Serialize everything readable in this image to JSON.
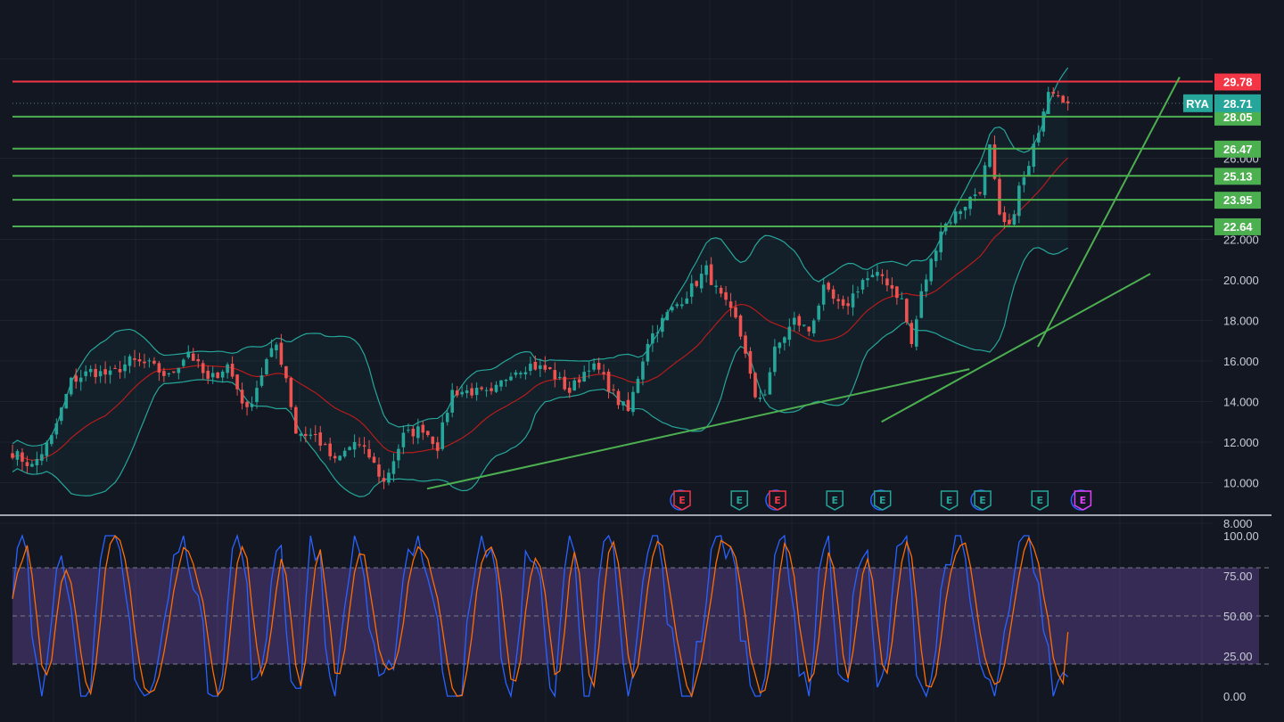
{
  "chart_data": [
    {
      "type": "candlestick",
      "symbol": "RYA",
      "price_axis": {
        "min": 7.0,
        "max": 32.0,
        "ticks": [
          {
            "value": 8,
            "label": "8.000"
          },
          {
            "value": 10,
            "label": "10.000"
          },
          {
            "value": 12,
            "label": "12.000"
          },
          {
            "value": 14,
            "label": "14.000"
          },
          {
            "value": 16,
            "label": "16.000"
          },
          {
            "value": 18,
            "label": "18.000"
          },
          {
            "value": 20,
            "label": "20.000"
          },
          {
            "value": 22,
            "label": "22.000"
          },
          {
            "value": 26,
            "label": "26.000"
          }
        ]
      },
      "current_price": {
        "symbol": "RYA",
        "value": 28.71,
        "label": "28.71",
        "color": "#26a69a"
      },
      "horizontal_levels": [
        {
          "value": 29.78,
          "label": "29.78",
          "color": "#f23645"
        },
        {
          "value": 28.05,
          "label": "28.05",
          "color": "#4caf50"
        },
        {
          "value": 26.47,
          "label": "26.47",
          "color": "#4caf50"
        },
        {
          "value": 25.13,
          "label": "25.13",
          "color": "#4caf50"
        },
        {
          "value": 23.95,
          "label": "23.95",
          "color": "#4caf50"
        },
        {
          "value": 22.64,
          "label": "22.64",
          "color": "#4caf50"
        }
      ],
      "trendlines": [
        {
          "from": [
            0,
            9.7
          ],
          "to": [
            111,
            15.6
          ],
          "color": "#4caf50"
        },
        {
          "from": [
            93,
            13.0
          ],
          "to": [
            148,
            20.3
          ],
          "color": "#4caf50"
        },
        {
          "from": [
            125,
            16.7
          ],
          "to": [
            154,
            30.0
          ],
          "color": "#4caf50"
        }
      ],
      "bollinger_bands": {
        "period": 20,
        "std": 2,
        "band_color": "#26a69a",
        "basis_color": "#b71c1c"
      },
      "earnings_markers": [
        {
          "index": 70,
          "label": "E",
          "color": "#f23645",
          "ring": "#2962ff"
        },
        {
          "index": 82,
          "label": "E",
          "color": "#26a69a"
        },
        {
          "index": 90,
          "label": "E",
          "color": "#f23645",
          "ring": "#2962ff"
        },
        {
          "index": 102,
          "label": "E",
          "color": "#26a69a"
        },
        {
          "index": 112,
          "label": "E",
          "color": "#26a69a",
          "ring": "#2962ff"
        },
        {
          "index": 126,
          "label": "E",
          "color": "#26a69a"
        },
        {
          "index": 133,
          "label": "E",
          "color": "#26a69a",
          "ring": "#2962ff"
        },
        {
          "index": 145,
          "label": "E",
          "color": "#26a69a"
        },
        {
          "index": 154,
          "label": "E",
          "color": "#e040fb",
          "ring": "#2962ff"
        }
      ],
      "close_anchors": [
        [
          0,
          11.5
        ],
        [
          4,
          10.8
        ],
        [
          8,
          12.2
        ],
        [
          12,
          15.0
        ],
        [
          16,
          15.5
        ],
        [
          20,
          15.3
        ],
        [
          24,
          16.0
        ],
        [
          28,
          15.8
        ],
        [
          32,
          15.2
        ],
        [
          36,
          16.5
        ],
        [
          40,
          15.0
        ],
        [
          44,
          15.8
        ],
        [
          48,
          13.5
        ],
        [
          52,
          16.0
        ],
        [
          54,
          16.8
        ],
        [
          56,
          15.2
        ],
        [
          58,
          12.5
        ],
        [
          62,
          12.3
        ],
        [
          66,
          11.0
        ],
        [
          70,
          12.0
        ],
        [
          73,
          11.3
        ],
        [
          76,
          10.0
        ],
        [
          80,
          12.3
        ],
        [
          84,
          12.7
        ],
        [
          87,
          11.8
        ],
        [
          90,
          14.5
        ],
        [
          94,
          14.5
        ],
        [
          98,
          14.3
        ],
        [
          102,
          15.5
        ],
        [
          106,
          15.8
        ],
        [
          110,
          15.5
        ],
        [
          114,
          14.5
        ],
        [
          118,
          15.8
        ],
        [
          120,
          15.5
        ],
        [
          124,
          14.0
        ],
        [
          126,
          13.5
        ],
        [
          130,
          17.0
        ],
        [
          134,
          18.3
        ],
        [
          138,
          19.3
        ],
        [
          142,
          20.5
        ],
        [
          144,
          19.5
        ],
        [
          148,
          18.0
        ],
        [
          150,
          16.5
        ],
        [
          152,
          14.0
        ],
        [
          154,
          14.5
        ],
        [
          156,
          16.5
        ],
        [
          160,
          18.0
        ],
        [
          163,
          17.5
        ],
        [
          166,
          19.5
        ],
        [
          170,
          18.5
        ],
        [
          174,
          20.0
        ],
        [
          178,
          20.2
        ],
        [
          182,
          19.0
        ],
        [
          184,
          16.8
        ],
        [
          186,
          19.3
        ],
        [
          190,
          22.5
        ],
        [
          194,
          23.5
        ],
        [
          198,
          24.5
        ],
        [
          200,
          26.5
        ],
        [
          202,
          23.0
        ],
        [
          204,
          22.5
        ],
        [
          206,
          24.5
        ],
        [
          208,
          25.5
        ],
        [
          210,
          27.5
        ],
        [
          212,
          29.5
        ],
        [
          214,
          29.3
        ],
        [
          216,
          28.71
        ]
      ]
    },
    {
      "type": "line",
      "indicator": "stochastic",
      "y_axis": {
        "min": -8,
        "max": 108,
        "ticks": [
          {
            "value": 100,
            "label": "100.00"
          },
          {
            "value": 75,
            "label": "75.00"
          },
          {
            "value": 50,
            "label": "50.00"
          },
          {
            "value": 25,
            "label": "25.00"
          },
          {
            "value": 0,
            "label": "0.00"
          }
        ]
      },
      "bands": {
        "upper": 80,
        "lower": 20,
        "fill": "#7e57c2"
      },
      "series": [
        {
          "key": "k",
          "color": "#2962ff"
        },
        {
          "key": "d",
          "color": "#ff6d00"
        }
      ]
    }
  ]
}
